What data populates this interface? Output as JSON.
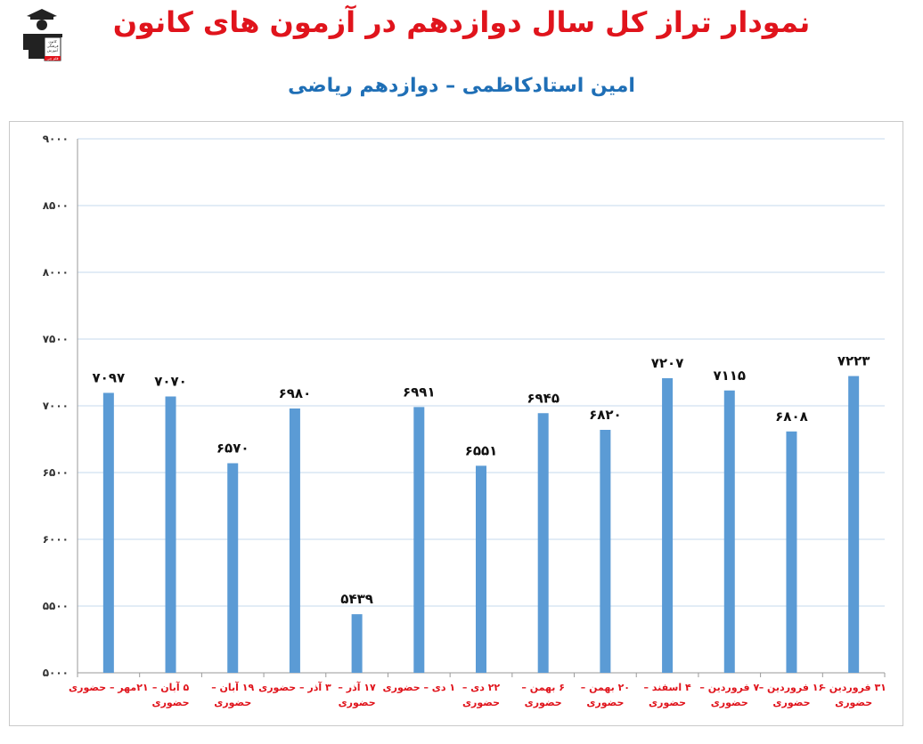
{
  "title": "نمودار تراز کل سال دوازدهم در آزمون های کانون",
  "subtitle": "امین استادکاظمی – دوازدهم ریاضی",
  "logo": {
    "lines": [
      "کانون",
      "فرهنگی",
      "آموزش",
      "قلم چی"
    ]
  },
  "colors": {
    "bar": "#5b9bd5",
    "title": "#e0141c",
    "subtitle": "#1f6fb6",
    "grid": "#c6d9ee",
    "xlabel": "#e0141c"
  },
  "chart_data": {
    "type": "bar",
    "title": "",
    "xlabel": "",
    "ylabel": "",
    "ylim": [
      5000,
      9000
    ],
    "yticks": [
      5000,
      5500,
      6000,
      6500,
      7000,
      7500,
      8000,
      8500,
      9000
    ],
    "ytick_labels": [
      "۵۰۰۰",
      "۵۵۰۰",
      "۶۰۰۰",
      "۶۵۰۰",
      "۷۰۰۰",
      "۷۵۰۰",
      "۸۰۰۰",
      "۸۵۰۰",
      "۹۰۰۰"
    ],
    "grid": true,
    "categories": [
      [
        "۲۱مهر – حضوری"
      ],
      [
        "۵ آبان –",
        "حضوری"
      ],
      [
        "۱۹ آبان –",
        "حضوری"
      ],
      [
        "۳ آذر – حضوری"
      ],
      [
        "۱۷ آذر –",
        "حضوری"
      ],
      [
        "۱ دی – حضوری"
      ],
      [
        "۲۲ دی –",
        "حضوری"
      ],
      [
        "۶ بهمن –",
        "حضوری"
      ],
      [
        "۲۰ بهمن –",
        "حضوری"
      ],
      [
        "۴ اسفند –",
        "حضوری"
      ],
      [
        "۷ فروردین –",
        "حضوری"
      ],
      [
        "۱۶ فروردین –",
        "حضوری"
      ],
      [
        "۳۱ فروردین –",
        "حضوری"
      ]
    ],
    "values": [
      7097,
      7070,
      6570,
      6980,
      5439,
      6991,
      6551,
      6945,
      6820,
      7207,
      7115,
      6808,
      7223
    ],
    "value_labels": [
      "۷۰۹۷",
      "۷۰۷۰",
      "۶۵۷۰",
      "۶۹۸۰",
      "۵۴۳۹",
      "۶۹۹۱",
      "۶۵۵۱",
      "۶۹۴۵",
      "۶۸۲۰",
      "۷۲۰۷",
      "۷۱۱۵",
      "۶۸۰۸",
      "۷۲۲۳"
    ]
  }
}
